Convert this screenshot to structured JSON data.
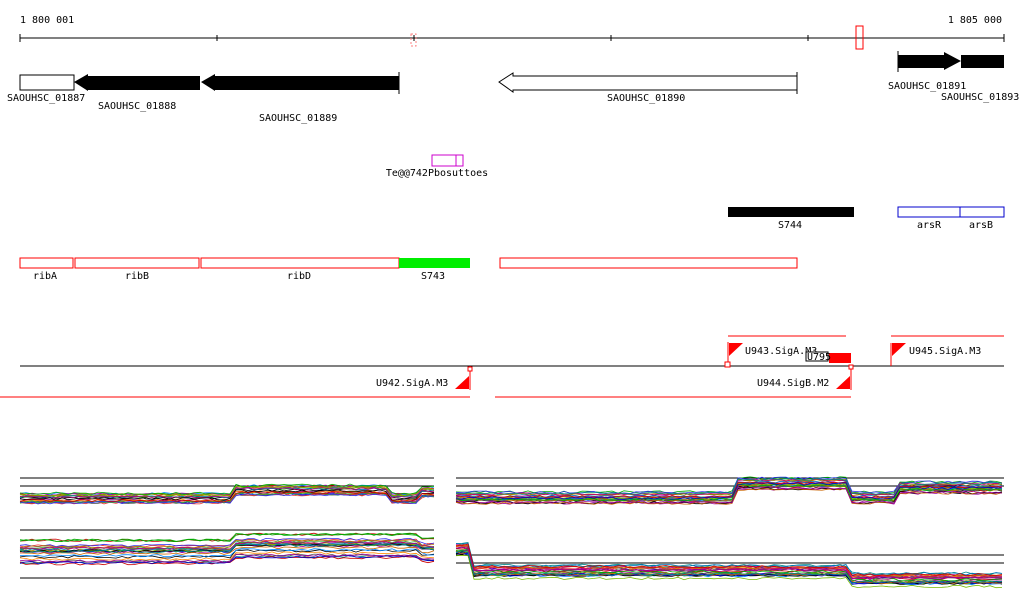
{
  "scale": {
    "start_label": "1 800 001",
    "end_label": "1 805 000"
  },
  "genes": [
    {
      "id": "SAOUHSC_01887",
      "label": "SAOUHSC_01887",
      "fill": "#ffffff",
      "strand": "plus"
    },
    {
      "id": "SAOUHSC_01888",
      "label": "SAOUHSC_01888",
      "fill": "#000000",
      "strand": "minus"
    },
    {
      "id": "SAOUHSC_01889",
      "label": "SAOUHSC_01889",
      "fill": "#000000",
      "strand": "minus"
    },
    {
      "id": "SAOUHSC_01890",
      "label": "SAOUHSC_01890",
      "fill": "#ffffff",
      "strand": "minus"
    },
    {
      "id": "SAOUHSC_01891",
      "label": "SAOUHSC_01891",
      "fill": "#000000",
      "strand": "plus"
    },
    {
      "id": "SAOUHSC_01893",
      "label": "SAOUHSC_01893",
      "fill": "#000000",
      "strand": "plus"
    }
  ],
  "misc_features": {
    "overlap_label": "Te@@742Pbosuttoes"
  },
  "features_row2": [
    {
      "label": "S744",
      "fill": "#000000"
    },
    {
      "label": "arsR",
      "fill": "#ffffff"
    },
    {
      "label": "arsB",
      "fill": "#ffffff"
    }
  ],
  "features_row3": [
    {
      "label": "ribA",
      "color": "#ff0000"
    },
    {
      "label": "ribB",
      "color": "#ff0000"
    },
    {
      "label": "ribD",
      "color": "#ff0000"
    },
    {
      "label": "S743",
      "color": "#00ee00"
    },
    {
      "label": "",
      "color": "#ff0000"
    }
  ],
  "transcripts": [
    {
      "label": "U943.SigA.M3"
    },
    {
      "label": "U945.SigA.M3"
    },
    {
      "label": "U942.SigA.M3"
    },
    {
      "label": "U944.SigB.M2"
    },
    {
      "label": "U795"
    }
  ],
  "colors": {
    "gene_outline": "#000000",
    "feature_red": "#ff0000",
    "feature_green": "#00ee00",
    "feature_blue": "#0000cc",
    "feature_magenta": "#cc00cc",
    "axis": "#000000"
  }
}
